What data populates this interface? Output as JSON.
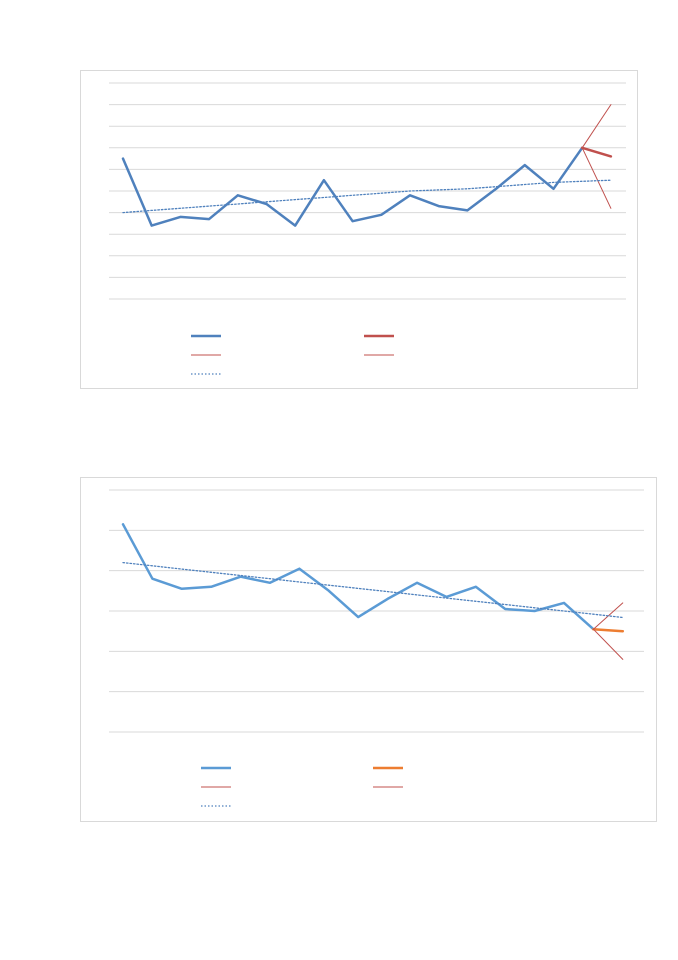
{
  "chart_data": [
    {
      "type": "line",
      "ylim": [
        0,
        10
      ],
      "grid": true,
      "legend_position": "bottom",
      "x": [
        1,
        2,
        3,
        4,
        5,
        6,
        7,
        8,
        9,
        10,
        11,
        12,
        13,
        14,
        15,
        16,
        17,
        18
      ],
      "series": [
        {
          "role": "actual",
          "color": "#4f81bd",
          "style": "solid",
          "values": [
            6.5,
            3.4,
            3.8,
            3.7,
            4.8,
            4.4,
            3.4,
            5.5,
            3.6,
            3.9,
            4.8,
            4.3,
            4.1,
            5.1,
            6.2,
            5.1,
            7.0,
            null
          ]
        },
        {
          "role": "forecast",
          "color": "#c0504d",
          "style": "solid",
          "values": [
            null,
            null,
            null,
            null,
            null,
            null,
            null,
            null,
            null,
            null,
            null,
            null,
            null,
            null,
            null,
            null,
            7.0,
            6.6
          ]
        },
        {
          "role": "upper-bound",
          "color": "#c0504d",
          "style": "thin",
          "values": [
            null,
            null,
            null,
            null,
            null,
            null,
            null,
            null,
            null,
            null,
            null,
            null,
            null,
            null,
            null,
            null,
            7.0,
            9.0
          ]
        },
        {
          "role": "lower-bound",
          "color": "#c0504d",
          "style": "thin",
          "values": [
            null,
            null,
            null,
            null,
            null,
            null,
            null,
            null,
            null,
            null,
            null,
            null,
            null,
            null,
            null,
            null,
            7.0,
            4.2
          ]
        },
        {
          "role": "trend",
          "color": "#4f81bd",
          "style": "dotted",
          "values": [
            4.0,
            4.1,
            4.2,
            4.3,
            4.4,
            4.5,
            4.6,
            4.7,
            4.8,
            4.9,
            5.0,
            5.05,
            5.1,
            5.2,
            5.3,
            5.4,
            5.45,
            5.5
          ]
        }
      ]
    },
    {
      "type": "line",
      "ylim": [
        0,
        6
      ],
      "grid": true,
      "legend_position": "bottom",
      "x": [
        1,
        2,
        3,
        4,
        5,
        6,
        7,
        8,
        9,
        10,
        11,
        12,
        13,
        14,
        15,
        16,
        17,
        18
      ],
      "series": [
        {
          "role": "actual",
          "color": "#5b9bd5",
          "style": "solid",
          "values": [
            5.15,
            3.8,
            3.55,
            3.6,
            3.85,
            3.7,
            4.05,
            3.5,
            2.85,
            3.3,
            3.7,
            3.35,
            3.6,
            3.05,
            3.0,
            3.2,
            2.55,
            null
          ]
        },
        {
          "role": "forecast",
          "color": "#ed7d31",
          "style": "solid",
          "values": [
            null,
            null,
            null,
            null,
            null,
            null,
            null,
            null,
            null,
            null,
            null,
            null,
            null,
            null,
            null,
            null,
            2.55,
            2.5
          ]
        },
        {
          "role": "upper-bound",
          "color": "#c0504d",
          "style": "thin",
          "values": [
            null,
            null,
            null,
            null,
            null,
            null,
            null,
            null,
            null,
            null,
            null,
            null,
            null,
            null,
            null,
            null,
            2.55,
            3.2
          ]
        },
        {
          "role": "lower-bound",
          "color": "#c0504d",
          "style": "thin",
          "values": [
            null,
            null,
            null,
            null,
            null,
            null,
            null,
            null,
            null,
            null,
            null,
            null,
            null,
            null,
            null,
            null,
            2.55,
            1.8
          ]
        },
        {
          "role": "trend",
          "color": "#4f81bd",
          "style": "dotted",
          "values": [
            4.2,
            4.12,
            4.04,
            3.96,
            3.88,
            3.8,
            3.72,
            3.64,
            3.56,
            3.48,
            3.4,
            3.32,
            3.24,
            3.16,
            3.08,
            3.0,
            2.92,
            2.84
          ]
        }
      ]
    }
  ]
}
